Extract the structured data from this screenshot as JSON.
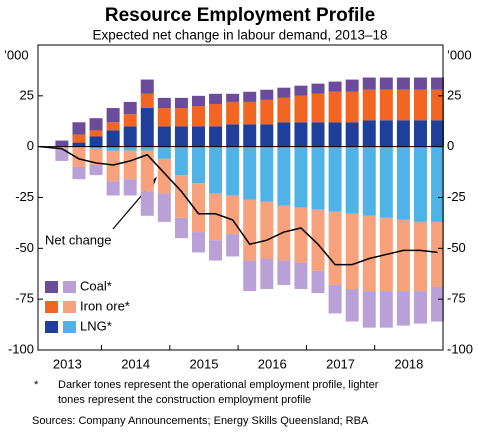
{
  "chart_data": {
    "type": "stacked-bar-line",
    "title": "Resource Employment Profile",
    "subtitle": "Expected net change in labour demand, 2013–18",
    "y_unit_label": "’000",
    "ylim": [
      -100,
      50
    ],
    "yticks": [
      -100,
      -75,
      -50,
      -25,
      0,
      25
    ],
    "xlim": [
      2013.07,
      2019.0
    ],
    "xticks": [
      {
        "value": 2013.5,
        "label": "2013"
      },
      {
        "value": 2014.5,
        "label": "2014"
      },
      {
        "value": 2015.5,
        "label": "2015"
      },
      {
        "value": 2016.5,
        "label": "2016"
      },
      {
        "value": 2017.5,
        "label": "2017"
      },
      {
        "value": 2018.5,
        "label": "2018"
      }
    ],
    "x": [
      2013.42,
      2013.67,
      2013.92,
      2014.17,
      2014.42,
      2014.67,
      2014.92,
      2015.17,
      2015.42,
      2015.67,
      2015.92,
      2016.17,
      2016.42,
      2016.67,
      2016.92,
      2017.17,
      2017.42,
      2017.67,
      2017.92,
      2018.17,
      2018.42,
      2018.67,
      2018.92
    ],
    "series": [
      {
        "name": "Coal*",
        "colors": [
          "#6b4c9a",
          "#b9a0d6"
        ],
        "operational": [
          3,
          6,
          6,
          7,
          6,
          7,
          5,
          5,
          5,
          5,
          4,
          5,
          5,
          5,
          5,
          5,
          5,
          6,
          6,
          6,
          6,
          6,
          6
        ],
        "construction": [
          -6,
          -6,
          -5,
          -7,
          -8,
          -12,
          -14,
          -10,
          -10,
          -10,
          -11,
          -15,
          -15,
          -12,
          -13,
          -11,
          -14,
          -16,
          -18,
          -18,
          -17,
          -16,
          -17
        ]
      },
      {
        "name": "Iron ore*",
        "colors": [
          "#f26522",
          "#f7a27c"
        ],
        "operational": [
          0,
          4,
          3,
          4,
          6,
          7,
          9,
          9,
          10,
          11,
          11,
          11,
          12,
          12,
          13,
          14,
          15,
          15,
          15,
          15,
          15,
          15,
          15
        ],
        "construction": [
          -1,
          -10,
          -8,
          -15,
          -14,
          -20,
          -17,
          -21,
          -24,
          -23,
          -19,
          -30,
          -28,
          -27,
          -27,
          -30,
          -36,
          -37,
          -37,
          -36,
          -35,
          -34,
          -32
        ]
      },
      {
        "name": "LNG*",
        "colors": [
          "#1f3f9a",
          "#4fb3e8"
        ],
        "operational": [
          0,
          2,
          5,
          8,
          10,
          19,
          10,
          10,
          10,
          10,
          11,
          11,
          11,
          12,
          12,
          12,
          12,
          12,
          13,
          13,
          13,
          13,
          13
        ],
        "construction": [
          0,
          0,
          -1,
          -2,
          -2,
          -2,
          -6,
          -14,
          -18,
          -23,
          -24,
          -26,
          -27,
          -29,
          -30,
          -31,
          -32,
          -33,
          -34,
          -35,
          -36,
          -37,
          -37
        ]
      }
    ],
    "line": {
      "name": "Net change",
      "color": "#000000",
      "x": [
        2013.1,
        2013.42,
        2013.67,
        2013.92,
        2014.17,
        2014.42,
        2014.67,
        2014.92,
        2015.17,
        2015.42,
        2015.67,
        2015.92,
        2016.17,
        2016.42,
        2016.67,
        2016.92,
        2017.17,
        2017.42,
        2017.67,
        2017.92,
        2018.17,
        2018.42,
        2018.67,
        2018.92
      ],
      "values": [
        0,
        -1,
        -6,
        -8,
        -9,
        -7,
        -4,
        -13,
        -22,
        -33,
        -33,
        -36,
        -48,
        -46,
        -42,
        -40,
        -48,
        -58,
        -58,
        -55,
        -53,
        -51,
        -51,
        -52
      ]
    },
    "notes": [
      "*",
      "Darker tones represent the operational employment profile, lighter",
      "tones represent the construction employment profile"
    ],
    "sources": "Sources:  Company Announcements; Energy Skills Queensland; RBA"
  }
}
